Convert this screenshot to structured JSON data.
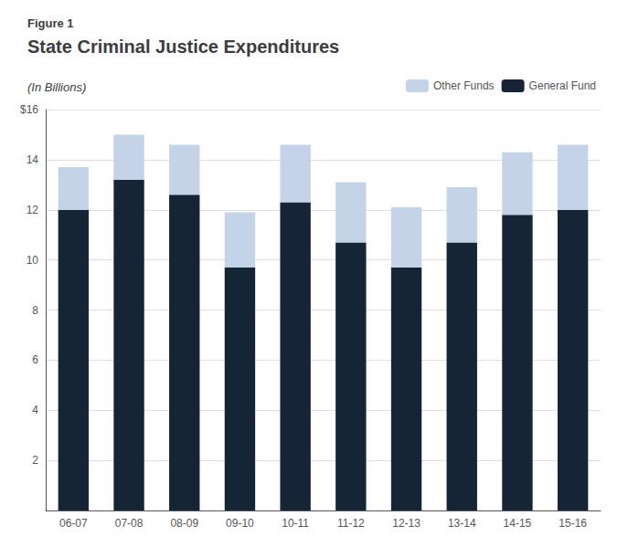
{
  "chart_data": {
    "type": "bar",
    "title": "State Criminal Justice Expenditures",
    "subtitle": "(In Billions)",
    "annotations": [
      "Figure 1"
    ],
    "categories": [
      "06-07",
      "07-08",
      "08-09",
      "09-10",
      "10-11",
      "11-12",
      "12-13",
      "13-14",
      "14-15",
      "15-16"
    ],
    "series": [
      {
        "name": "General Fund",
        "color": "#152535",
        "values": [
          12.0,
          13.2,
          12.6,
          9.7,
          12.3,
          10.7,
          9.7,
          10.7,
          11.8,
          12.0
        ]
      },
      {
        "name": "Other Funds",
        "color": "#c5d3e8",
        "values": [
          1.7,
          1.8,
          2.0,
          2.2,
          2.3,
          2.4,
          2.4,
          2.2,
          2.5,
          2.6
        ]
      }
    ],
    "stacked": true,
    "ylim": [
      0,
      16
    ],
    "yticks": [
      {
        "value": 0,
        "label": ""
      },
      2,
      4,
      6,
      8,
      10,
      12,
      14,
      {
        "value": 16,
        "label": "$16"
      }
    ],
    "grid": true,
    "legend": "upper right"
  }
}
